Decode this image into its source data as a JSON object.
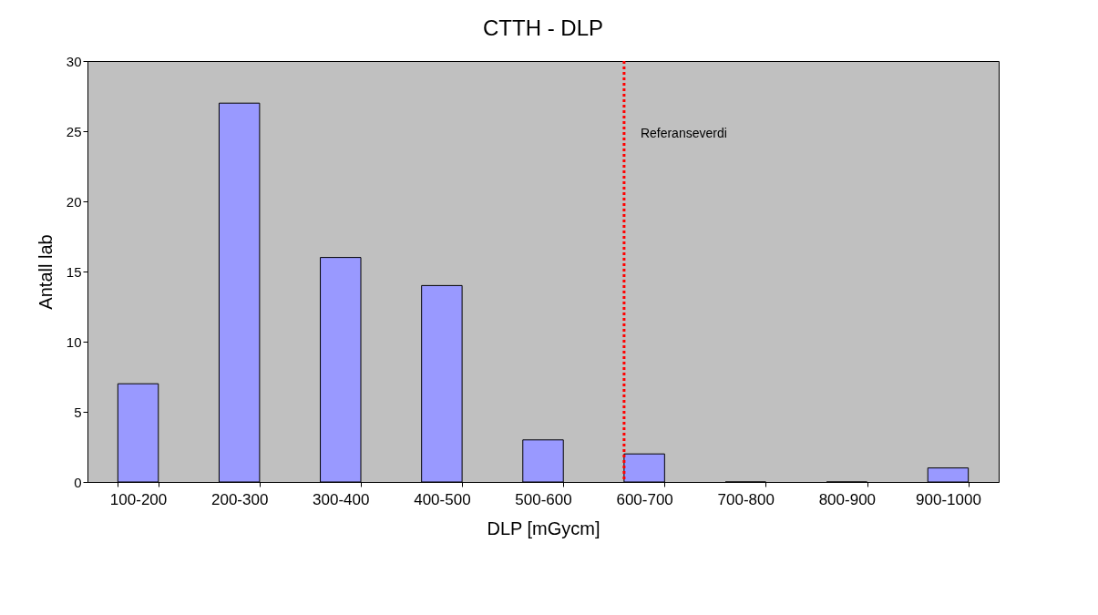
{
  "chart_data": {
    "type": "bar",
    "title": "CTTH - DLP",
    "xlabel": "DLP [mGycm]",
    "ylabel": "Antall lab",
    "categories": [
      "100-200",
      "200-300",
      "300-400",
      "400-500",
      "500-600",
      "600-700",
      "700-800",
      "800-900",
      "900-1000"
    ],
    "values": [
      7,
      27,
      16,
      14,
      3,
      2,
      0,
      0,
      1
    ],
    "color": "#9999ff",
    "ylim": [
      0,
      30
    ],
    "yticks": [
      0,
      5,
      10,
      15,
      20,
      25,
      30
    ],
    "ref_lines": [
      {
        "axis": "x",
        "value": "600-700",
        "label": "Referanseverdi",
        "color": "#ff0000",
        "line_style": "dotted"
      }
    ],
    "grid": false,
    "legend": false
  }
}
